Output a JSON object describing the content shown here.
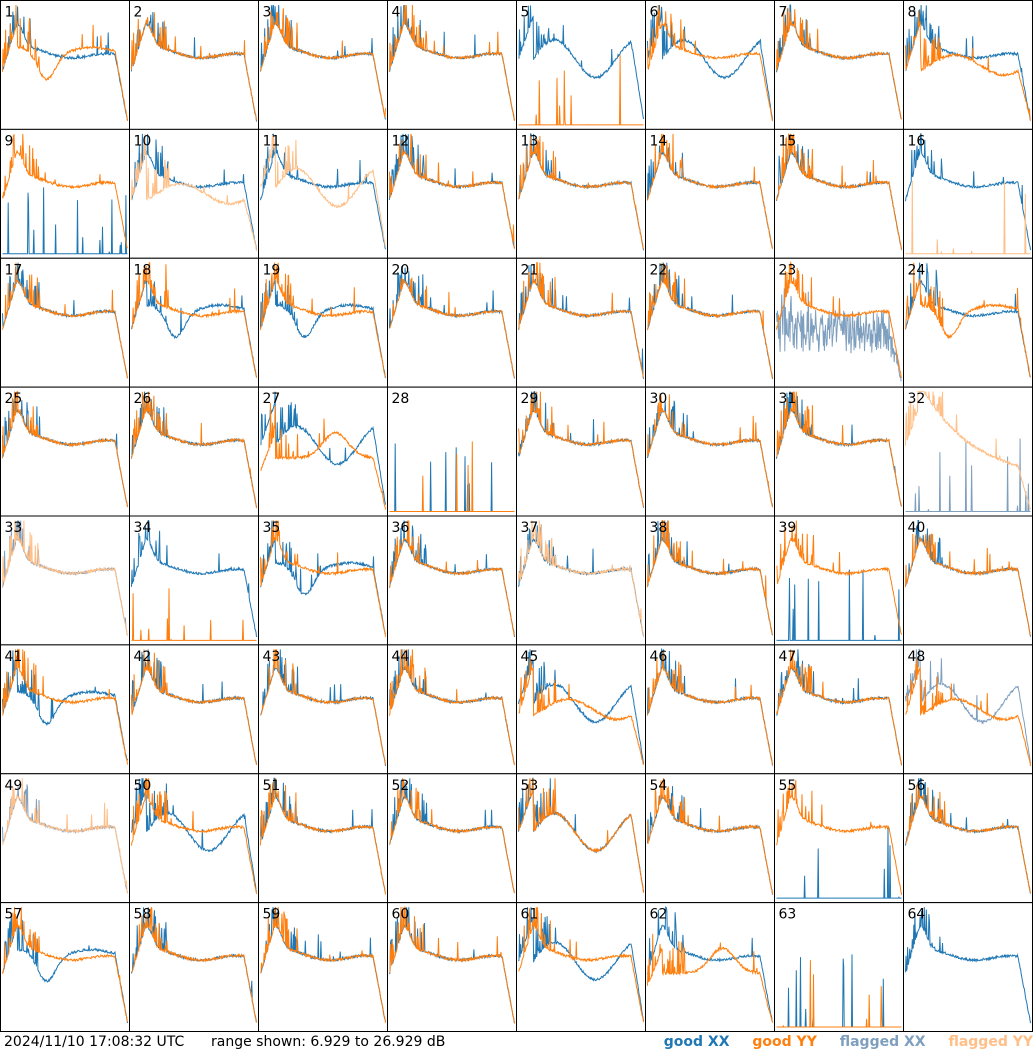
{
  "footer": {
    "timestamp": "2024/11/10 17:08:32 UTC",
    "range_text": "range shown: 6.929 to 26.929 dB"
  },
  "legend": {
    "good_xx": "good XX",
    "good_yy": "good YY",
    "flagged_xx": "flagged XX",
    "flagged_yy": "flagged YY"
  },
  "colors": {
    "good_xx": "#1f77b4",
    "good_yy": "#ff7f0e",
    "flagged_xx": "#7f9fbf",
    "flagged_yy": "#ffbf87"
  },
  "chart_data": {
    "type": "line",
    "layout": "8x8 grid of small multiples",
    "ylim": [
      6.929,
      26.929
    ],
    "yunit": "dB",
    "panels": [
      {
        "id": "1",
        "xx": "good",
        "yy": "good",
        "shape_xx": "flat",
        "shape_yy": "dip"
      },
      {
        "id": "2",
        "xx": "good",
        "yy": "good",
        "shape_xx": "flat",
        "shape_yy": "flat"
      },
      {
        "id": "3",
        "xx": "good",
        "yy": "good",
        "shape_xx": "flat",
        "shape_yy": "flat"
      },
      {
        "id": "4",
        "xx": "good",
        "yy": "good",
        "shape_xx": "flat",
        "shape_yy": "flat"
      },
      {
        "id": "5",
        "xx": "good",
        "yy": "good",
        "shape_xx": "wave",
        "shape_yy": "dead"
      },
      {
        "id": "6",
        "xx": "good",
        "yy": "good",
        "shape_xx": "wave",
        "shape_yy": "flat"
      },
      {
        "id": "7",
        "xx": "good",
        "yy": "good",
        "shape_xx": "flat",
        "shape_yy": "flat"
      },
      {
        "id": "8",
        "xx": "good",
        "yy": "good",
        "shape_xx": "flat",
        "shape_yy": "wavy"
      },
      {
        "id": "9",
        "xx": "good",
        "yy": "good",
        "shape_xx": "dead",
        "shape_yy": "flat"
      },
      {
        "id": "10",
        "xx": "good",
        "yy": "flagged",
        "shape_xx": "flat",
        "shape_yy": "wavy"
      },
      {
        "id": "11",
        "xx": "good",
        "yy": "flagged",
        "shape_xx": "flat",
        "shape_yy": "wave"
      },
      {
        "id": "12",
        "xx": "good",
        "yy": "good",
        "shape_xx": "flat",
        "shape_yy": "flat"
      },
      {
        "id": "13",
        "xx": "good",
        "yy": "good",
        "shape_xx": "flat",
        "shape_yy": "flat"
      },
      {
        "id": "14",
        "xx": "good",
        "yy": "good",
        "shape_xx": "flat",
        "shape_yy": "flat"
      },
      {
        "id": "15",
        "xx": "good",
        "yy": "good",
        "shape_xx": "flat",
        "shape_yy": "flat"
      },
      {
        "id": "16",
        "xx": "good",
        "yy": "flagged",
        "shape_xx": "flat",
        "shape_yy": "dead"
      },
      {
        "id": "17",
        "xx": "good",
        "yy": "good",
        "shape_xx": "flat",
        "shape_yy": "flat"
      },
      {
        "id": "18",
        "xx": "good",
        "yy": "good",
        "shape_xx": "dip",
        "shape_yy": "flat"
      },
      {
        "id": "19",
        "xx": "good",
        "yy": "good",
        "shape_xx": "dip",
        "shape_yy": "flat"
      },
      {
        "id": "20",
        "xx": "good",
        "yy": "good",
        "shape_xx": "flat",
        "shape_yy": "flat"
      },
      {
        "id": "21",
        "xx": "good",
        "yy": "good",
        "shape_xx": "flat",
        "shape_yy": "flat"
      },
      {
        "id": "22",
        "xx": "good",
        "yy": "good",
        "shape_xx": "flat",
        "shape_yy": "flat"
      },
      {
        "id": "23",
        "xx": "flagged",
        "yy": "good",
        "shape_xx": "noisy",
        "shape_yy": "flat"
      },
      {
        "id": "24",
        "xx": "good",
        "yy": "good",
        "shape_xx": "flat",
        "shape_yy": "dip"
      },
      {
        "id": "25",
        "xx": "good",
        "yy": "good",
        "shape_xx": "flat",
        "shape_yy": "flat"
      },
      {
        "id": "26",
        "xx": "good",
        "yy": "good",
        "shape_xx": "flat",
        "shape_yy": "flat"
      },
      {
        "id": "27",
        "xx": "good",
        "yy": "good",
        "shape_xx": "wave",
        "shape_yy": "hump"
      },
      {
        "id": "28",
        "xx": "good",
        "yy": "good",
        "shape_xx": "dead",
        "shape_yy": "dead"
      },
      {
        "id": "29",
        "xx": "good",
        "yy": "good",
        "shape_xx": "flat",
        "shape_yy": "flat"
      },
      {
        "id": "30",
        "xx": "good",
        "yy": "good",
        "shape_xx": "flat",
        "shape_yy": "flat"
      },
      {
        "id": "31",
        "xx": "good",
        "yy": "good",
        "shape_xx": "flat",
        "shape_yy": "flat"
      },
      {
        "id": "32",
        "xx": "flagged",
        "yy": "flagged",
        "shape_xx": "dead",
        "shape_yy": "decay"
      },
      {
        "id": "33",
        "xx": "flagged",
        "yy": "flagged",
        "shape_xx": "flat",
        "shape_yy": "flat"
      },
      {
        "id": "34",
        "xx": "good",
        "yy": "good",
        "shape_xx": "flat",
        "shape_yy": "dead"
      },
      {
        "id": "35",
        "xx": "good",
        "yy": "good",
        "shape_xx": "dip",
        "shape_yy": "flat"
      },
      {
        "id": "36",
        "xx": "good",
        "yy": "good",
        "shape_xx": "flat",
        "shape_yy": "flat"
      },
      {
        "id": "37",
        "xx": "good",
        "yy": "flagged",
        "shape_xx": "flat",
        "shape_yy": "flat"
      },
      {
        "id": "38",
        "xx": "good",
        "yy": "good",
        "shape_xx": "flat",
        "shape_yy": "flat"
      },
      {
        "id": "39",
        "xx": "good",
        "yy": "good",
        "shape_xx": "dead",
        "shape_yy": "flat"
      },
      {
        "id": "40",
        "xx": "good",
        "yy": "good",
        "shape_xx": "flat",
        "shape_yy": "flat"
      },
      {
        "id": "41",
        "xx": "good",
        "yy": "good",
        "shape_xx": "dip",
        "shape_yy": "flat"
      },
      {
        "id": "42",
        "xx": "good",
        "yy": "good",
        "shape_xx": "flat",
        "shape_yy": "flat"
      },
      {
        "id": "43",
        "xx": "good",
        "yy": "good",
        "shape_xx": "flat",
        "shape_yy": "flat"
      },
      {
        "id": "44",
        "xx": "good",
        "yy": "good",
        "shape_xx": "flat",
        "shape_yy": "flat"
      },
      {
        "id": "45",
        "xx": "good",
        "yy": "good",
        "shape_xx": "wave",
        "shape_yy": "wavy"
      },
      {
        "id": "46",
        "xx": "good",
        "yy": "good",
        "shape_xx": "flat",
        "shape_yy": "flat"
      },
      {
        "id": "47",
        "xx": "good",
        "yy": "good",
        "shape_xx": "flat",
        "shape_yy": "flat"
      },
      {
        "id": "48",
        "xx": "flagged",
        "yy": "good",
        "shape_xx": "wave",
        "shape_yy": "wavy"
      },
      {
        "id": "49",
        "xx": "flagged",
        "yy": "flagged",
        "shape_xx": "flat",
        "shape_yy": "flat"
      },
      {
        "id": "50",
        "xx": "good",
        "yy": "good",
        "shape_xx": "wave",
        "shape_yy": "flat"
      },
      {
        "id": "51",
        "xx": "good",
        "yy": "good",
        "shape_xx": "flat",
        "shape_yy": "flat"
      },
      {
        "id": "52",
        "xx": "good",
        "yy": "good",
        "shape_xx": "flat",
        "shape_yy": "flat"
      },
      {
        "id": "53",
        "xx": "good",
        "yy": "good",
        "shape_xx": "wave",
        "shape_yy": "wave"
      },
      {
        "id": "54",
        "xx": "good",
        "yy": "good",
        "shape_xx": "flat",
        "shape_yy": "flat"
      },
      {
        "id": "55",
        "xx": "good",
        "yy": "good",
        "shape_xx": "dead",
        "shape_yy": "flat"
      },
      {
        "id": "56",
        "xx": "good",
        "yy": "good",
        "shape_xx": "flat",
        "shape_yy": "flat"
      },
      {
        "id": "57",
        "xx": "good",
        "yy": "good",
        "shape_xx": "dip",
        "shape_yy": "flat"
      },
      {
        "id": "58",
        "xx": "good",
        "yy": "good",
        "shape_xx": "flat",
        "shape_yy": "flat"
      },
      {
        "id": "59",
        "xx": "good",
        "yy": "good",
        "shape_xx": "flat",
        "shape_yy": "flat"
      },
      {
        "id": "60",
        "xx": "good",
        "yy": "good",
        "shape_xx": "flat",
        "shape_yy": "flat"
      },
      {
        "id": "61",
        "xx": "good",
        "yy": "good",
        "shape_xx": "wave",
        "shape_yy": "flat"
      },
      {
        "id": "62",
        "xx": "good",
        "yy": "good",
        "shape_xx": "flat",
        "shape_yy": "hump"
      },
      {
        "id": "63",
        "xx": "good",
        "yy": "good",
        "shape_xx": "dead",
        "shape_yy": "dead"
      },
      {
        "id": "64",
        "xx": "good",
        "yy": "good",
        "shape_xx": "flat",
        "shape_yy": "none"
      }
    ]
  }
}
